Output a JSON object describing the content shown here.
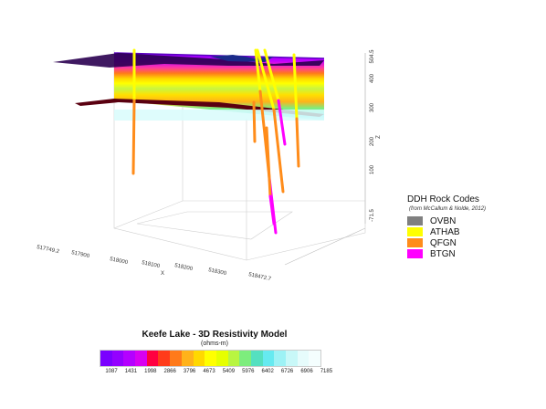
{
  "axes": {
    "x_label": "X",
    "x_ticks": [
      "517749.2",
      "517900",
      "518000",
      "518100",
      "518200",
      "518300",
      "518472.7"
    ],
    "z_label": "Z",
    "z_ticks": [
      "504.5",
      "400",
      "300",
      "200",
      "100",
      "-71.5"
    ]
  },
  "legend": {
    "title": "DDH Rock Codes",
    "source": "(from McCallum & Nolde, 2012)",
    "items": [
      {
        "label": "OVBN",
        "color": "#808080"
      },
      {
        "label": "ATHAB",
        "color": "#ffff00"
      },
      {
        "label": "QFGN",
        "color": "#ff8c1a"
      },
      {
        "label": "BTGN",
        "color": "#ff00ff"
      }
    ]
  },
  "colorbar": {
    "title": "Keefe Lake - 3D Resistivity Model",
    "unit": "(ohms-m)",
    "colors": [
      "#7a00ff",
      "#9400ff",
      "#b400ff",
      "#d800f0",
      "#ff0040",
      "#ff3b1a",
      "#ff7a1a",
      "#ffb21a",
      "#ffd800",
      "#ffff00",
      "#e6ff00",
      "#b8f542",
      "#7ded7d",
      "#55e0c0",
      "#66eaf0",
      "#9df2f5",
      "#c8f8f8",
      "#e6fcfc",
      "#f4fefe"
    ],
    "tick_labels": [
      "1087",
      "1431",
      "1998",
      "2866",
      "3796",
      "4673",
      "5409",
      "5976",
      "6402",
      "6726",
      "6906",
      "7185"
    ]
  }
}
